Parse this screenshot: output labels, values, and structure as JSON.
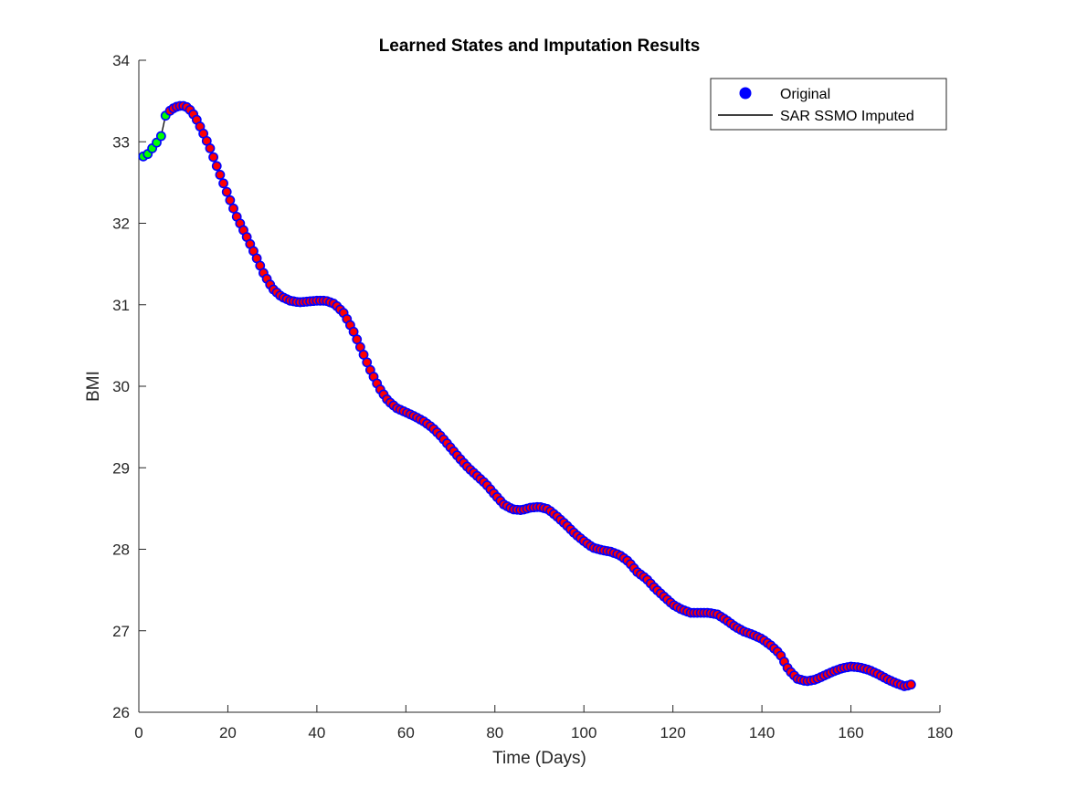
{
  "chart_data": {
    "type": "scatter",
    "title": "Learned States and Imputation Results",
    "xlabel": "Time (Days)",
    "ylabel": "BMI",
    "xlim": [
      0,
      180
    ],
    "ylim": [
      26,
      34
    ],
    "xticks": [
      "0",
      "20",
      "40",
      "60",
      "80",
      "100",
      "120",
      "140",
      "160",
      "180"
    ],
    "yticks": [
      "26",
      "27",
      "28",
      "29",
      "30",
      "31",
      "32",
      "33",
      "34"
    ],
    "grid": false,
    "legend_position": "top-right",
    "legend": [
      {
        "label": "Original",
        "marker": "circle",
        "color": "#0000ff"
      },
      {
        "label": "SAR SSMO Imputed",
        "marker": "line",
        "color": "#000000"
      }
    ],
    "colors": {
      "original_edge": "#0000ff",
      "observed_fill": "#ff0000",
      "imputed_fill": "#00ff00",
      "line": "#000000"
    },
    "imputed_days": [
      1,
      2,
      3,
      4,
      5,
      6
    ],
    "anchors": {
      "x": [
        1,
        2,
        3,
        4,
        5,
        6,
        7,
        8,
        9,
        10,
        11,
        12,
        13,
        14,
        16,
        18,
        20,
        22,
        24,
        26,
        28,
        30,
        32,
        34,
        36,
        38,
        40,
        42,
        44,
        46,
        48,
        50,
        52,
        54,
        56,
        58,
        60,
        62,
        64,
        66,
        68,
        70,
        72,
        74,
        76,
        78,
        80,
        82,
        84,
        86,
        88,
        90,
        92,
        94,
        96,
        98,
        100,
        102,
        104,
        106,
        108,
        110,
        112,
        113,
        114,
        116,
        118,
        120,
        122,
        124,
        126,
        128,
        130,
        132,
        134,
        136,
        138,
        140,
        142,
        144,
        146,
        148,
        150,
        151,
        152,
        154,
        156,
        158,
        160,
        162,
        164,
        166,
        168,
        170,
        172,
        173,
        174
      ],
      "y": [
        32.82,
        32.85,
        32.92,
        32.99,
        33.07,
        33.32,
        33.38,
        33.42,
        33.44,
        33.44,
        33.42,
        33.36,
        33.27,
        33.16,
        32.92,
        32.63,
        32.35,
        32.08,
        31.86,
        31.63,
        31.39,
        31.2,
        31.1,
        31.05,
        31.03,
        31.04,
        31.05,
        31.05,
        31.01,
        30.9,
        30.7,
        30.45,
        30.2,
        29.98,
        29.82,
        29.73,
        29.68,
        29.63,
        29.57,
        29.49,
        29.38,
        29.25,
        29.12,
        29.0,
        28.9,
        28.8,
        28.67,
        28.55,
        28.49,
        28.48,
        28.51,
        28.52,
        28.49,
        28.4,
        28.3,
        28.19,
        28.1,
        28.02,
        27.99,
        27.97,
        27.93,
        27.85,
        27.72,
        27.68,
        27.64,
        27.52,
        27.42,
        27.32,
        27.26,
        27.22,
        27.22,
        27.22,
        27.2,
        27.13,
        27.05,
        26.99,
        26.95,
        26.9,
        26.82,
        26.72,
        26.52,
        26.41,
        26.38,
        26.39,
        26.4,
        26.45,
        26.5,
        26.54,
        26.56,
        26.55,
        26.52,
        26.47,
        26.41,
        26.36,
        26.32,
        26.33,
        26.35
      ]
    }
  }
}
